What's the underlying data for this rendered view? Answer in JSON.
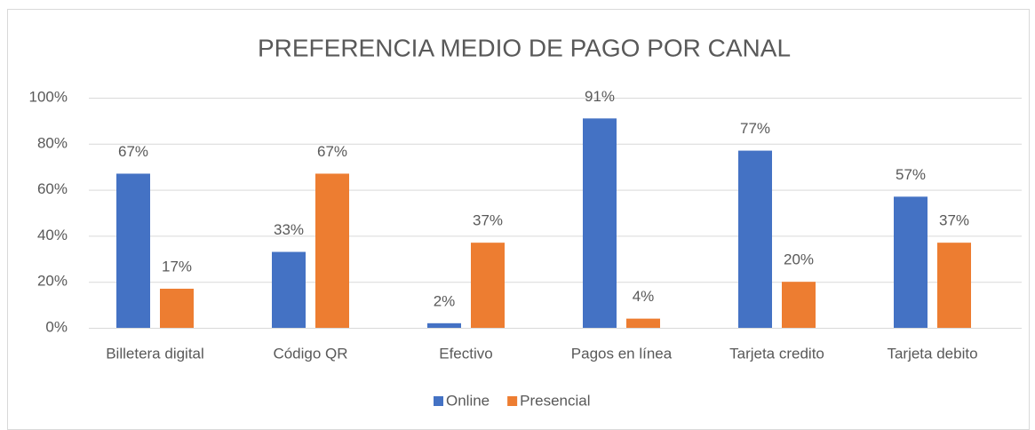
{
  "chart_data": {
    "type": "bar",
    "title": "PREFERENCIA MEDIO DE PAGO POR CANAL",
    "categories": [
      "Billetera digital",
      "Código QR",
      "Efectivo",
      "Pagos en línea",
      "Tarjeta credito",
      "Tarjeta debito"
    ],
    "series": [
      {
        "name": "Online",
        "color": "#4472c4",
        "values": [
          67,
          33,
          2,
          91,
          77,
          57
        ],
        "value_labels": [
          "67%",
          "33%",
          "2%",
          "91%",
          "77%",
          "57%"
        ]
      },
      {
        "name": "Presencial",
        "color": "#ed7d31",
        "values": [
          17,
          67,
          37,
          4,
          20,
          37
        ],
        "value_labels": [
          "17%",
          "67%",
          "37%",
          "4%",
          "20%",
          "37%"
        ]
      }
    ],
    "ylim": [
      0,
      100
    ],
    "yticks": [
      {
        "value": 0,
        "label": "0%"
      },
      {
        "value": 20,
        "label": "20%"
      },
      {
        "value": 40,
        "label": "40%"
      },
      {
        "value": 60,
        "label": "60%"
      },
      {
        "value": 80,
        "label": "80%"
      },
      {
        "value": 100,
        "label": "100%"
      }
    ],
    "grid": true,
    "legend": "bottom"
  }
}
